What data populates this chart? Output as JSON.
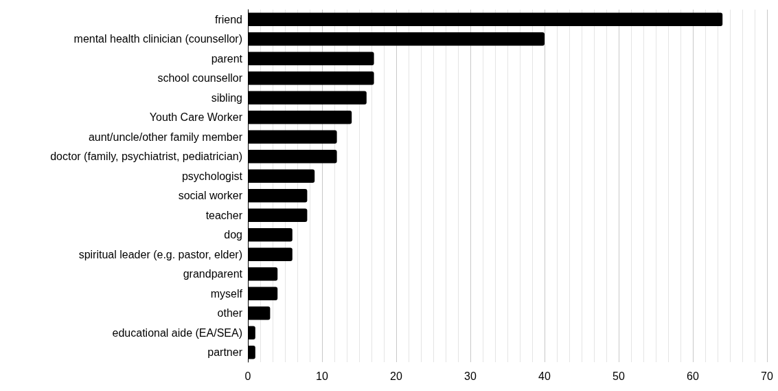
{
  "chart_data": {
    "type": "bar",
    "orientation": "horizontal",
    "categories": [
      "friend",
      "mental health clinician (counsellor)",
      "parent",
      "school counsellor",
      "sibling",
      "Youth Care Worker",
      "aunt/uncle/other family member",
      "doctor (family, psychiatrist, pediatrician)",
      "psychologist",
      "social worker",
      "teacher",
      "dog",
      "spiritual leader (e.g. pastor, elder)",
      "grandparent",
      "myself",
      "other",
      "educational aide (EA/SEA)",
      "partner"
    ],
    "values": [
      64,
      40,
      17,
      17,
      16,
      14,
      12,
      12,
      9,
      8,
      8,
      6,
      6,
      4,
      4,
      3,
      1,
      1
    ],
    "color": "#000000",
    "xlim": [
      0,
      70
    ],
    "xticks": [
      0,
      10,
      20,
      30,
      40,
      50,
      60,
      70
    ],
    "grid": "x"
  }
}
